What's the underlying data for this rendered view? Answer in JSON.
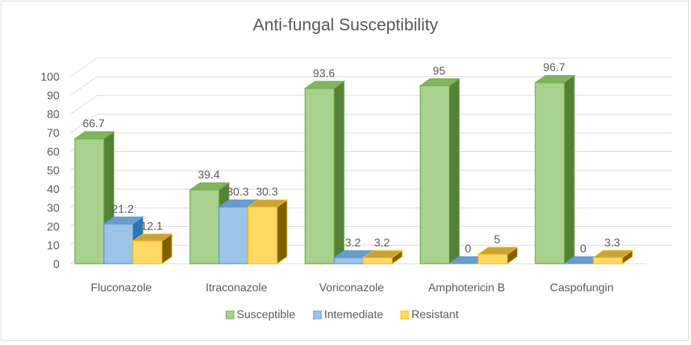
{
  "chart_data": {
    "type": "bar",
    "title": "Anti-fungal  Susceptibility",
    "xlabel": "",
    "ylabel": "",
    "ylim": [
      0,
      100
    ],
    "yticks": [
      0,
      10,
      20,
      30,
      40,
      50,
      60,
      70,
      80,
      90,
      100
    ],
    "grid": true,
    "legend_position": "bottom",
    "categories": [
      "Fluconazole",
      "Itraconazole",
      "Voriconazole",
      "Amphotericin B",
      "Caspofungin"
    ],
    "series": [
      {
        "name": "Susceptible",
        "values": [
          66.7,
          39.4,
          93.6,
          95,
          96.7
        ],
        "color": "#a9d18e",
        "edge": "#70ad47",
        "side": "#548235",
        "top": "#7fb55f"
      },
      {
        "name": "Intemediate",
        "values": [
          21.2,
          30.3,
          3.2,
          0,
          0
        ],
        "color": "#9dc3e6",
        "edge": "#5b9bd5",
        "side": "#2e75b6",
        "top": "#6a9bcd"
      },
      {
        "name": "Resistant",
        "values": [
          12.1,
          30.3,
          3.2,
          5,
          3.3
        ],
        "color": "#ffd966",
        "edge": "#ffc000",
        "side": "#7f6000",
        "top": "#c9a240"
      }
    ]
  }
}
